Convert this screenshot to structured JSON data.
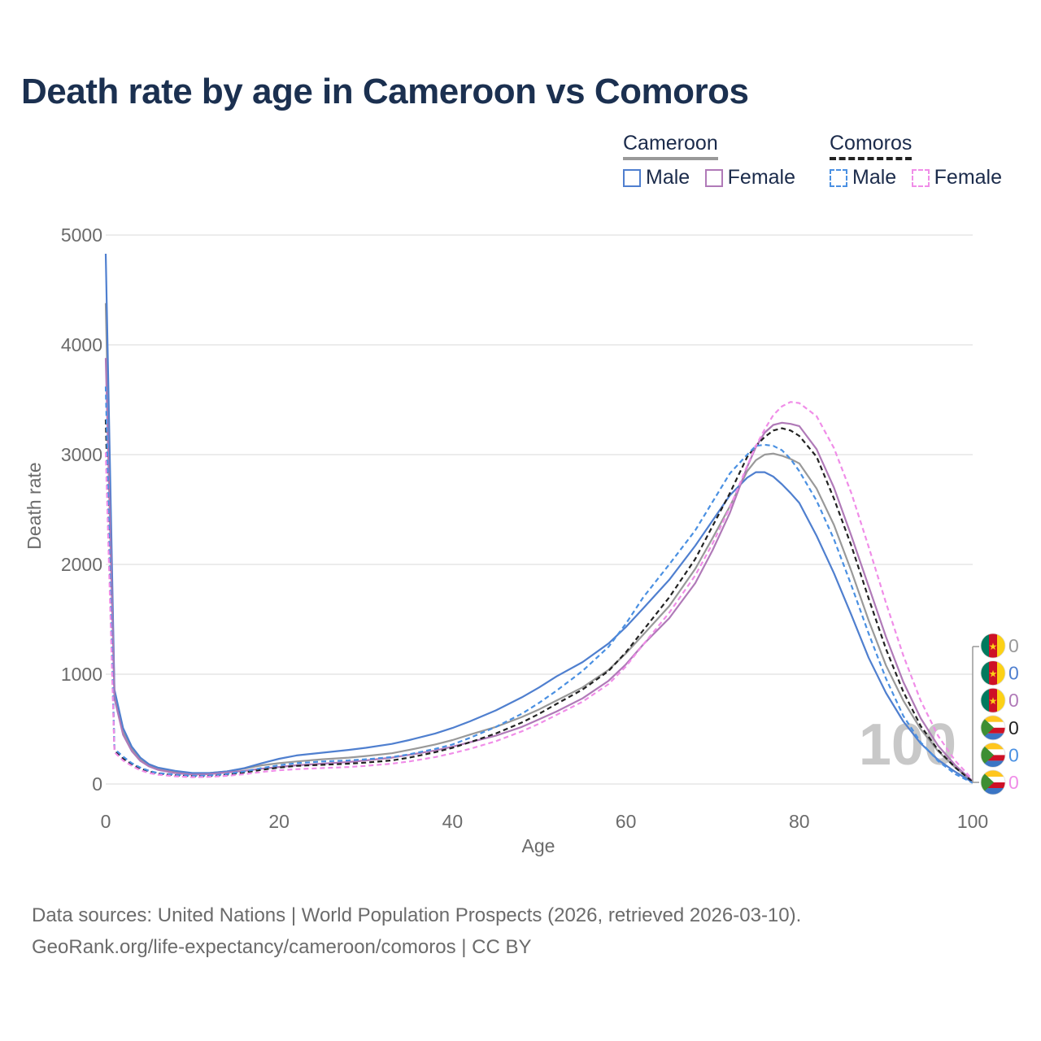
{
  "title": "Death rate by age in Cameroon vs Comoros",
  "legend": {
    "groups": [
      {
        "name": "Cameroon",
        "items": [
          {
            "label": "Male",
            "color": "#4f7fcf"
          },
          {
            "label": "Female",
            "color": "#b07ab8"
          }
        ]
      },
      {
        "name": "Comoros",
        "items": [
          {
            "label": "Male",
            "color": "#4a90e2"
          },
          {
            "label": "Female",
            "color": "#f08de8"
          }
        ]
      }
    ]
  },
  "year_watermark": "100",
  "end_labels": [
    "0",
    "0",
    "0",
    "0",
    "0",
    "0"
  ],
  "sources": {
    "line1": "Data sources: United Nations | World Population Prospects (2026, retrieved 2026-03-10).",
    "line2": "GeoRank.org/life-expectancy/cameroon/comoros | CC BY"
  },
  "chart_data": {
    "type": "line",
    "title": "Death rate by age in Cameroon vs Comoros",
    "xlabel": "Age",
    "ylabel": "Death rate",
    "xlim": [
      0,
      100
    ],
    "ylim": [
      0,
      5000
    ],
    "xticks": [
      0,
      20,
      40,
      60,
      80,
      100
    ],
    "yticks": [
      0,
      1000,
      2000,
      3000,
      4000,
      5000
    ],
    "grid": true,
    "x": [
      0,
      1,
      2,
      3,
      4,
      5,
      6,
      8,
      10,
      12,
      14,
      16,
      18,
      20,
      22,
      25,
      28,
      30,
      33,
      35,
      38,
      40,
      42,
      45,
      48,
      50,
      52,
      55,
      58,
      60,
      62,
      65,
      68,
      70,
      72,
      74,
      75,
      76,
      77,
      78,
      79,
      80,
      82,
      84,
      86,
      88,
      90,
      92,
      94,
      96,
      98,
      100
    ],
    "series": [
      {
        "name": "Cameroon Total",
        "color": "#999999",
        "dash": false,
        "values": [
          4380,
          820,
          480,
          320,
          220,
          170,
          140,
          110,
          95,
          100,
          115,
          140,
          170,
          190,
          205,
          225,
          240,
          255,
          280,
          310,
          360,
          400,
          450,
          520,
          610,
          680,
          760,
          880,
          1040,
          1190,
          1360,
          1620,
          1960,
          2240,
          2530,
          2850,
          2950,
          3000,
          3010,
          2990,
          2960,
          2920,
          2690,
          2360,
          1940,
          1490,
          1080,
          760,
          500,
          300,
          150,
          20
        ]
      },
      {
        "name": "Cameroon Male",
        "color": "#4f7fcf",
        "dash": false,
        "values": [
          4830,
          860,
          510,
          340,
          240,
          180,
          150,
          120,
          100,
          100,
          115,
          145,
          190,
          230,
          260,
          285,
          310,
          330,
          365,
          400,
          460,
          510,
          570,
          670,
          790,
          880,
          980,
          1110,
          1280,
          1430,
          1600,
          1860,
          2170,
          2400,
          2630,
          2790,
          2840,
          2840,
          2800,
          2730,
          2650,
          2560,
          2260,
          1920,
          1540,
          1150,
          830,
          570,
          370,
          220,
          110,
          15
        ]
      },
      {
        "name": "Cameroon Female",
        "color": "#b07ab8",
        "dash": false,
        "values": [
          3880,
          780,
          450,
          300,
          210,
          160,
          130,
          100,
          85,
          90,
          105,
          120,
          140,
          155,
          170,
          185,
          200,
          215,
          240,
          265,
          305,
          340,
          380,
          440,
          520,
          590,
          660,
          780,
          940,
          1090,
          1270,
          1510,
          1830,
          2130,
          2470,
          2890,
          3070,
          3200,
          3270,
          3290,
          3280,
          3260,
          3050,
          2700,
          2260,
          1800,
          1340,
          930,
          600,
          350,
          170,
          25
        ]
      },
      {
        "name": "Comoros Total",
        "color": "#222222",
        "dash": true,
        "values": [
          3320,
          300,
          230,
          180,
          140,
          115,
          95,
          80,
          70,
          72,
          85,
          105,
          130,
          150,
          165,
          175,
          185,
          195,
          215,
          240,
          290,
          330,
          380,
          460,
          560,
          640,
          730,
          860,
          1030,
          1200,
          1400,
          1700,
          2050,
          2350,
          2650,
          2980,
          3080,
          3160,
          3220,
          3240,
          3220,
          3170,
          2980,
          2600,
          2170,
          1690,
          1230,
          840,
          530,
          310,
          150,
          20
        ]
      },
      {
        "name": "Comoros Male",
        "color": "#4a90e2",
        "dash": true,
        "values": [
          3620,
          320,
          250,
          190,
          150,
          120,
          100,
          85,
          75,
          78,
          92,
          115,
          145,
          170,
          190,
          205,
          215,
          225,
          245,
          270,
          320,
          360,
          420,
          520,
          640,
          740,
          850,
          1030,
          1250,
          1460,
          1700,
          2000,
          2310,
          2570,
          2830,
          3000,
          3080,
          3090,
          3080,
          3040,
          2960,
          2850,
          2580,
          2230,
          1810,
          1370,
          960,
          620,
          380,
          210,
          90,
          10
        ]
      },
      {
        "name": "Comoros Female",
        "color": "#f08de8",
        "dash": true,
        "values": [
          3020,
          290,
          215,
          165,
          125,
          100,
          85,
          70,
          62,
          65,
          75,
          90,
          110,
          125,
          135,
          145,
          155,
          165,
          185,
          205,
          245,
          280,
          320,
          390,
          480,
          550,
          630,
          750,
          910,
          1070,
          1270,
          1560,
          1900,
          2190,
          2520,
          2900,
          3080,
          3230,
          3360,
          3440,
          3480,
          3470,
          3350,
          3060,
          2650,
          2160,
          1650,
          1170,
          760,
          440,
          210,
          40
        ]
      }
    ]
  }
}
